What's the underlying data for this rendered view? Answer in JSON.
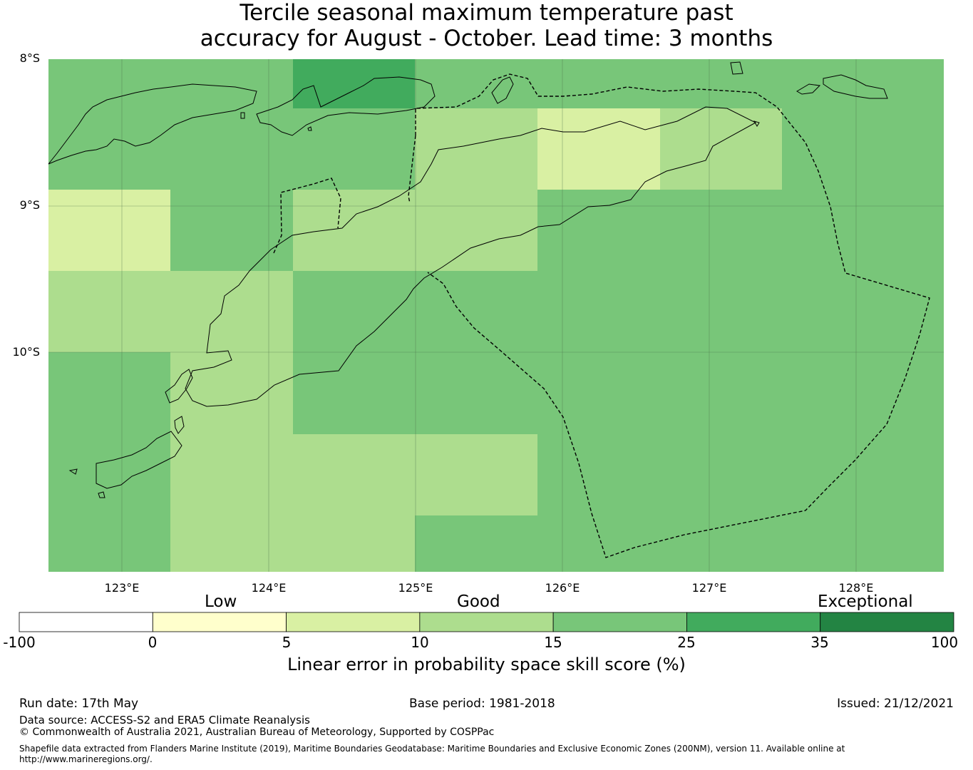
{
  "title": {
    "line1": "Tercile seasonal maximum temperature past",
    "line2": "accuracy for August - October. Lead time: 3 months"
  },
  "map": {
    "lat_labels": [
      "8°S",
      "9°S",
      "10°S"
    ],
    "lon_labels": [
      "123°E",
      "124°E",
      "125°E",
      "126°E",
      "127°E",
      "128°E"
    ],
    "colors": {
      "c15_25": "#78c679",
      "c25_35": "#41ab5d",
      "c10_15": "#addd8e",
      "c5_10": "#d9f0a3",
      "c0_5": "#ffffcc",
      "neg": "#ffffff",
      "c35_100": "#238443"
    }
  },
  "colorbar": {
    "categories": [
      "Low",
      "Good",
      "Exceptional"
    ],
    "ticks": [
      "-100",
      "0",
      "5",
      "10",
      "15",
      "25",
      "35",
      "100"
    ],
    "colors": [
      "#ffffff",
      "#ffffcc",
      "#d9f0a3",
      "#addd8e",
      "#78c679",
      "#41ab5d",
      "#238443"
    ],
    "label": "Linear error in probability space skill score (%)"
  },
  "footer": {
    "run_date": "Run date: 17th May",
    "base_period": "Base period: 1981-2018",
    "issued": "Issued: 21/12/2021",
    "data_source": "Data source: ACCESS-S2 and ERA5 Climate Reanalysis",
    "copyright": "© Commonwealth of Australia 2021, Australian Bureau of Meteorology, Supported by COSPPac",
    "shapefile_line1": "Shapefile data extracted from Flanders Marine Institute (2019), Maritime Boundaries Geodatabase: Maritime Boundaries and Exclusive Economic Zones (200NM), version 11. Available online at",
    "shapefile_line2": "http://www.marineregions.org/."
  }
}
